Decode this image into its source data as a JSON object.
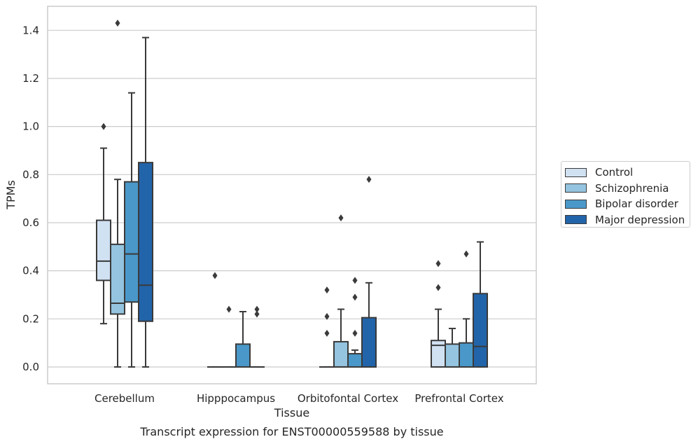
{
  "chart_data": {
    "type": "box",
    "title": "Transcript expression for ENST00000559588 by tissue",
    "xlabel": "Tissue",
    "ylabel": "TPMs",
    "ylim": [
      -0.07,
      1.5
    ],
    "yticks": [
      0.0,
      0.2,
      0.4,
      0.6,
      0.8,
      1.0,
      1.2,
      1.4
    ],
    "ytick_labels": [
      "0.0",
      "0.2",
      "0.4",
      "0.6",
      "0.8",
      "1.0",
      "1.2",
      "1.4"
    ],
    "categories": [
      "Cerebellum",
      "Hipppocampus",
      "Orbitofontal Cortex",
      "Prefrontal Cortex"
    ],
    "grid": "horizontal",
    "legend_position": "right",
    "series": [
      {
        "name": "Control",
        "color": "#d0e1f2",
        "boxes": [
          {
            "q1": 0.36,
            "median": 0.44,
            "q3": 0.61,
            "whislo": 0.18,
            "whishi": 0.91,
            "fliers": [
              1.0
            ]
          },
          {
            "q1": 0.0,
            "median": 0.0,
            "q3": 0.0,
            "whislo": 0.0,
            "whishi": 0.0,
            "fliers": [
              0.38
            ]
          },
          {
            "q1": 0.0,
            "median": 0.0,
            "q3": 0.0,
            "whislo": 0.0,
            "whishi": 0.0,
            "fliers": [
              0.14,
              0.21,
              0.32
            ]
          },
          {
            "q1": 0.0,
            "median": 0.09,
            "q3": 0.11,
            "whislo": 0.0,
            "whishi": 0.24,
            "fliers": [
              0.33,
              0.43
            ]
          }
        ]
      },
      {
        "name": "Schizophrenia",
        "color": "#94c4df",
        "boxes": [
          {
            "q1": 0.22,
            "median": 0.265,
            "q3": 0.51,
            "whislo": 0.0,
            "whishi": 0.78,
            "fliers": [
              1.43
            ]
          },
          {
            "q1": 0.0,
            "median": 0.0,
            "q3": 0.0,
            "whislo": 0.0,
            "whishi": 0.0,
            "fliers": [
              0.24
            ]
          },
          {
            "q1": 0.0,
            "median": 0.0,
            "q3": 0.105,
            "whislo": 0.0,
            "whishi": 0.24,
            "fliers": [
              0.62
            ]
          },
          {
            "q1": 0.0,
            "median": 0.0,
            "q3": 0.095,
            "whislo": 0.0,
            "whishi": 0.16,
            "fliers": []
          }
        ]
      },
      {
        "name": "Bipolar disorder",
        "color": "#4a98c9",
        "boxes": [
          {
            "q1": 0.27,
            "median": 0.47,
            "q3": 0.77,
            "whislo": 0.0,
            "whishi": 1.14,
            "fliers": []
          },
          {
            "q1": 0.0,
            "median": 0.0,
            "q3": 0.095,
            "whislo": 0.0,
            "whishi": 0.23,
            "fliers": []
          },
          {
            "q1": 0.0,
            "median": 0.0,
            "q3": 0.055,
            "whislo": 0.0,
            "whishi": 0.07,
            "fliers": [
              0.14,
              0.29,
              0.36
            ]
          },
          {
            "q1": 0.0,
            "median": 0.0,
            "q3": 0.1,
            "whislo": 0.0,
            "whishi": 0.2,
            "fliers": [
              0.47
            ]
          }
        ]
      },
      {
        "name": "Major depression",
        "color": "#2264a9",
        "boxes": [
          {
            "q1": 0.19,
            "median": 0.34,
            "q3": 0.85,
            "whislo": 0.0,
            "whishi": 1.37,
            "fliers": []
          },
          {
            "q1": 0.0,
            "median": 0.0,
            "q3": 0.0,
            "whislo": 0.0,
            "whishi": 0.0,
            "fliers": [
              0.22,
              0.24
            ]
          },
          {
            "q1": 0.0,
            "median": 0.0,
            "q3": 0.205,
            "whislo": 0.0,
            "whishi": 0.35,
            "fliers": [
              0.78
            ]
          },
          {
            "q1": 0.0,
            "median": 0.085,
            "q3": 0.305,
            "whislo": 0.0,
            "whishi": 0.52,
            "fliers": []
          }
        ]
      }
    ]
  }
}
